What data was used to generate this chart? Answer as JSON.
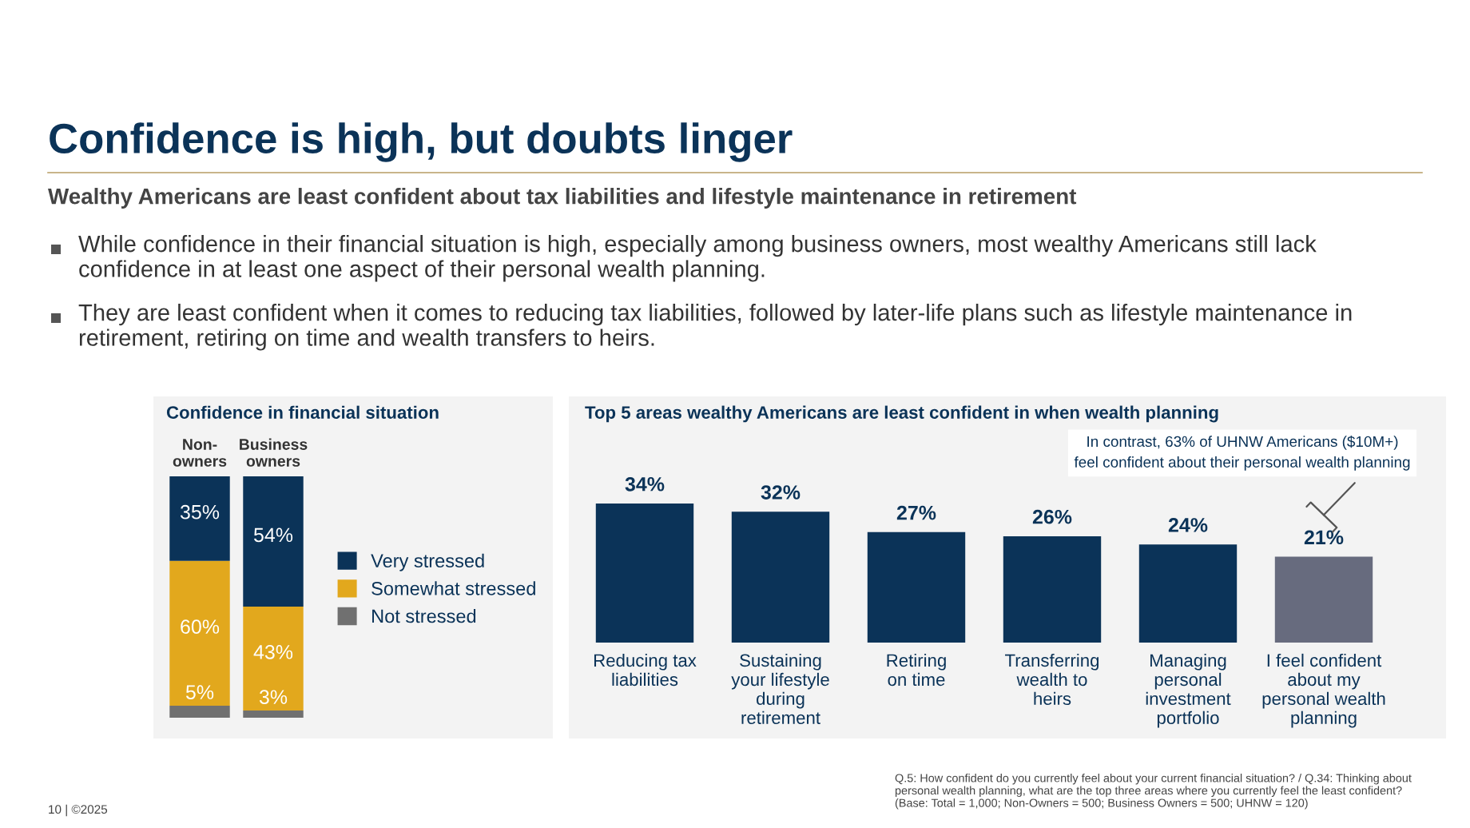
{
  "chart_data": [
    {
      "type": "other",
      "title": "Confidence is high, but doubts linger",
      "subtitle": "Wealthy Americans are least confident about tax liabilities and lifestyle maintenance in retirement",
      "annotations": [
        "While confidence in their financial situation is high, especially among business owners, most wealthy Americans still lack\nconfidence in at least one aspect of their personal wealth planning.",
        "They are least confident when it comes to reducing tax liabilities, followed by later-life plans such as lifestyle maintenance in\nretirement, retiring on time and wealth transfers to heirs.",
        "Q.5: How confident do you currently feel about your current financial situation? / Q.34: Thinking about\npersonal wealth planning, what are the top three areas where you currently feel the least confident?\n(Base: Total = 1,000; Non-Owners = 500; Business Owners = 500; UHNW = 120)",
        "10 | ©2025"
      ]
    },
    {
      "type": "bar",
      "title": "Confidence in financial situation",
      "categories": [
        "Non-\nowners",
        "Business\nowners"
      ],
      "stacked": true,
      "legend": "right",
      "series": [
        {
          "name": "Not stressed",
          "color": "#707070",
          "values": [
            5,
            3
          ],
          "value_labels": [
            "5%",
            "3%"
          ]
        },
        {
          "name": "Somewhat stressed",
          "color": "#e2a81d",
          "values": [
            60,
            43
          ],
          "value_labels": [
            "60%",
            "43%"
          ]
        },
        {
          "name": "Very stressed",
          "color": "#0b3358",
          "values": [
            35,
            54
          ],
          "value_labels": [
            "35%",
            "54%"
          ]
        }
      ]
    },
    {
      "type": "bar",
      "title": "Top 5 areas wealthy Americans are least confident in when wealth planning",
      "categories": [
        "Reducing tax\nliabilities",
        "Sustaining\nyour lifestyle\nduring\nretirement",
        "Retiring\non time",
        "Transferring\nwealth to\nheirs",
        "Managing\npersonal\ninvestment\nportfolio",
        "I feel confident\nabout my\npersonal wealth\nplanning"
      ],
      "values": [
        34,
        32,
        27,
        26,
        24,
        21
      ],
      "colors": [
        "#0b3358",
        "#0b3358",
        "#0b3358",
        "#0b3358",
        "#0b3358",
        "#676b7e"
      ],
      "value_labels": [
        "34%",
        "32%",
        "27%",
        "26%",
        "24%",
        "21%"
      ],
      "annotations": [
        "In contrast, 63% of UHNW Americans ($10M+)\nfeel confident about their personal wealth planning"
      ]
    }
  ]
}
